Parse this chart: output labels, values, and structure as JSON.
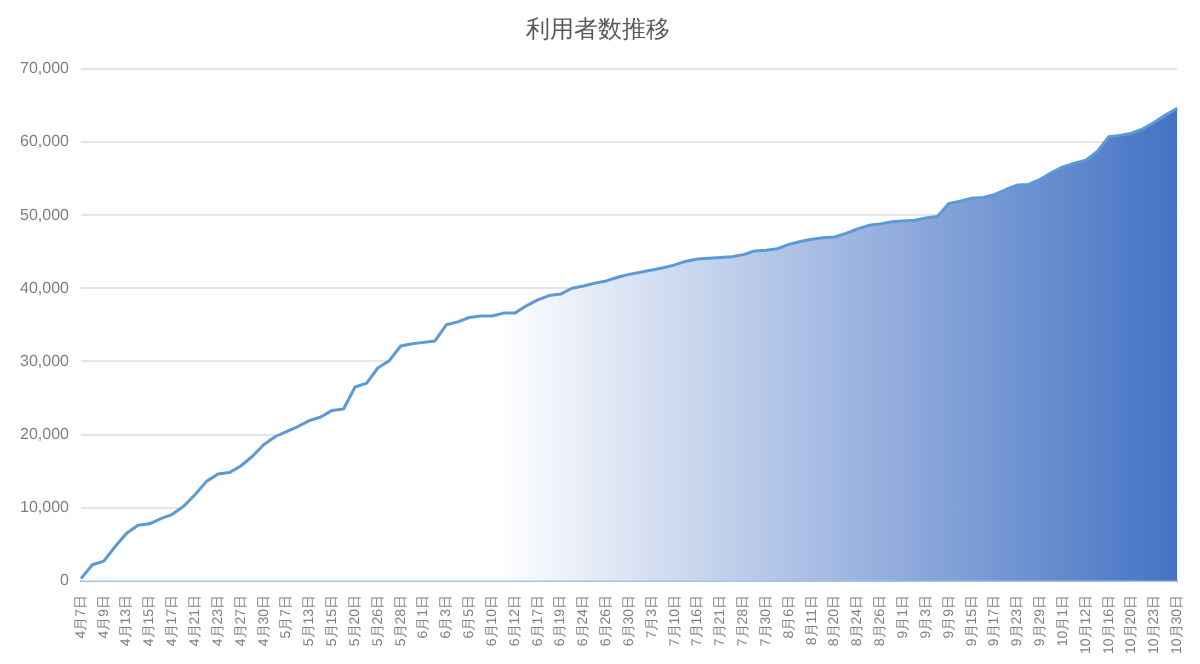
{
  "chart_data": {
    "type": "area",
    "title": "利用者数推移",
    "categories": [
      "4月7日",
      null,
      "4月9日",
      null,
      "4月13日",
      null,
      "4月15日",
      null,
      "4月17日",
      null,
      "4月21日",
      null,
      "4月23日",
      null,
      "4月27日",
      null,
      "4月30日",
      null,
      "5月7日",
      null,
      "5月13日",
      null,
      "5月15日",
      null,
      "5月20日",
      null,
      "5月26日",
      null,
      "5月28日",
      null,
      "6月1日",
      null,
      "6月3日",
      null,
      "6月5日",
      null,
      "6月10日",
      null,
      "6月12日",
      null,
      "6月17日",
      null,
      "6月19日",
      null,
      "6月24日",
      null,
      "6月26日",
      null,
      "6月30日",
      null,
      "7月3日",
      null,
      "7月10日",
      null,
      "7月16日",
      null,
      "7月21日",
      null,
      "7月28日",
      null,
      "7月30日",
      null,
      "8月6日",
      null,
      "8月11日",
      null,
      "8月20日",
      null,
      "8月24日",
      null,
      "8月26日",
      null,
      "9月1日",
      null,
      "9月3日",
      null,
      "9月9日",
      null,
      "9月15日",
      null,
      "9月17日",
      null,
      "9月23日",
      null,
      "9月29日",
      null,
      "10月1日",
      null,
      "10月12日",
      null,
      "10月16日",
      null,
      "10月20日",
      null,
      "10月23日",
      null,
      "10月30日"
    ],
    "series": [
      {
        "color": "#5b9bd5",
        "values": [
          300,
          2200,
          2700,
          4700,
          6500,
          7600,
          7800,
          8500,
          9100,
          10200,
          11800,
          13600,
          14600,
          14800,
          15700,
          17000,
          18600,
          19700,
          20400,
          21100,
          21900,
          22400,
          23300,
          23500,
          26500,
          27000,
          29100,
          30100,
          32100,
          32400,
          32600,
          32800,
          35000,
          35400,
          36000,
          36200,
          36200,
          36600,
          36600,
          37600,
          38400,
          39000,
          39200,
          40000,
          40300,
          40700,
          41000,
          41500,
          41900,
          42200,
          42500,
          42800,
          43200,
          43700,
          44000,
          44100,
          44200,
          44300,
          44600,
          45100,
          45200,
          45400,
          46000,
          46400,
          46700,
          46900,
          47000,
          47500,
          48100,
          48600,
          48800,
          49100,
          49200,
          49300,
          49600,
          49800,
          51600,
          51900,
          52300,
          52400,
          52800,
          53500,
          54100,
          54200,
          54900,
          55800,
          56600,
          57100,
          57500,
          58700,
          60700,
          60900,
          61200,
          61800,
          62700,
          63700,
          64600
        ]
      }
    ],
    "ylim": [
      0,
      70000
    ],
    "yticks": [
      0,
      {
        "value": 10000,
        "label": "10,000"
      },
      {
        "value": 20000,
        "label": "20,000"
      },
      {
        "value": 30000,
        "label": "30,000"
      },
      {
        "value": 40000,
        "label": "40,000"
      },
      {
        "value": 50000,
        "label": "50,000"
      },
      {
        "value": 60000,
        "label": "60,000"
      },
      {
        "value": 70000,
        "label": "70,000"
      }
    ],
    "grid": "y",
    "legend": false
  }
}
